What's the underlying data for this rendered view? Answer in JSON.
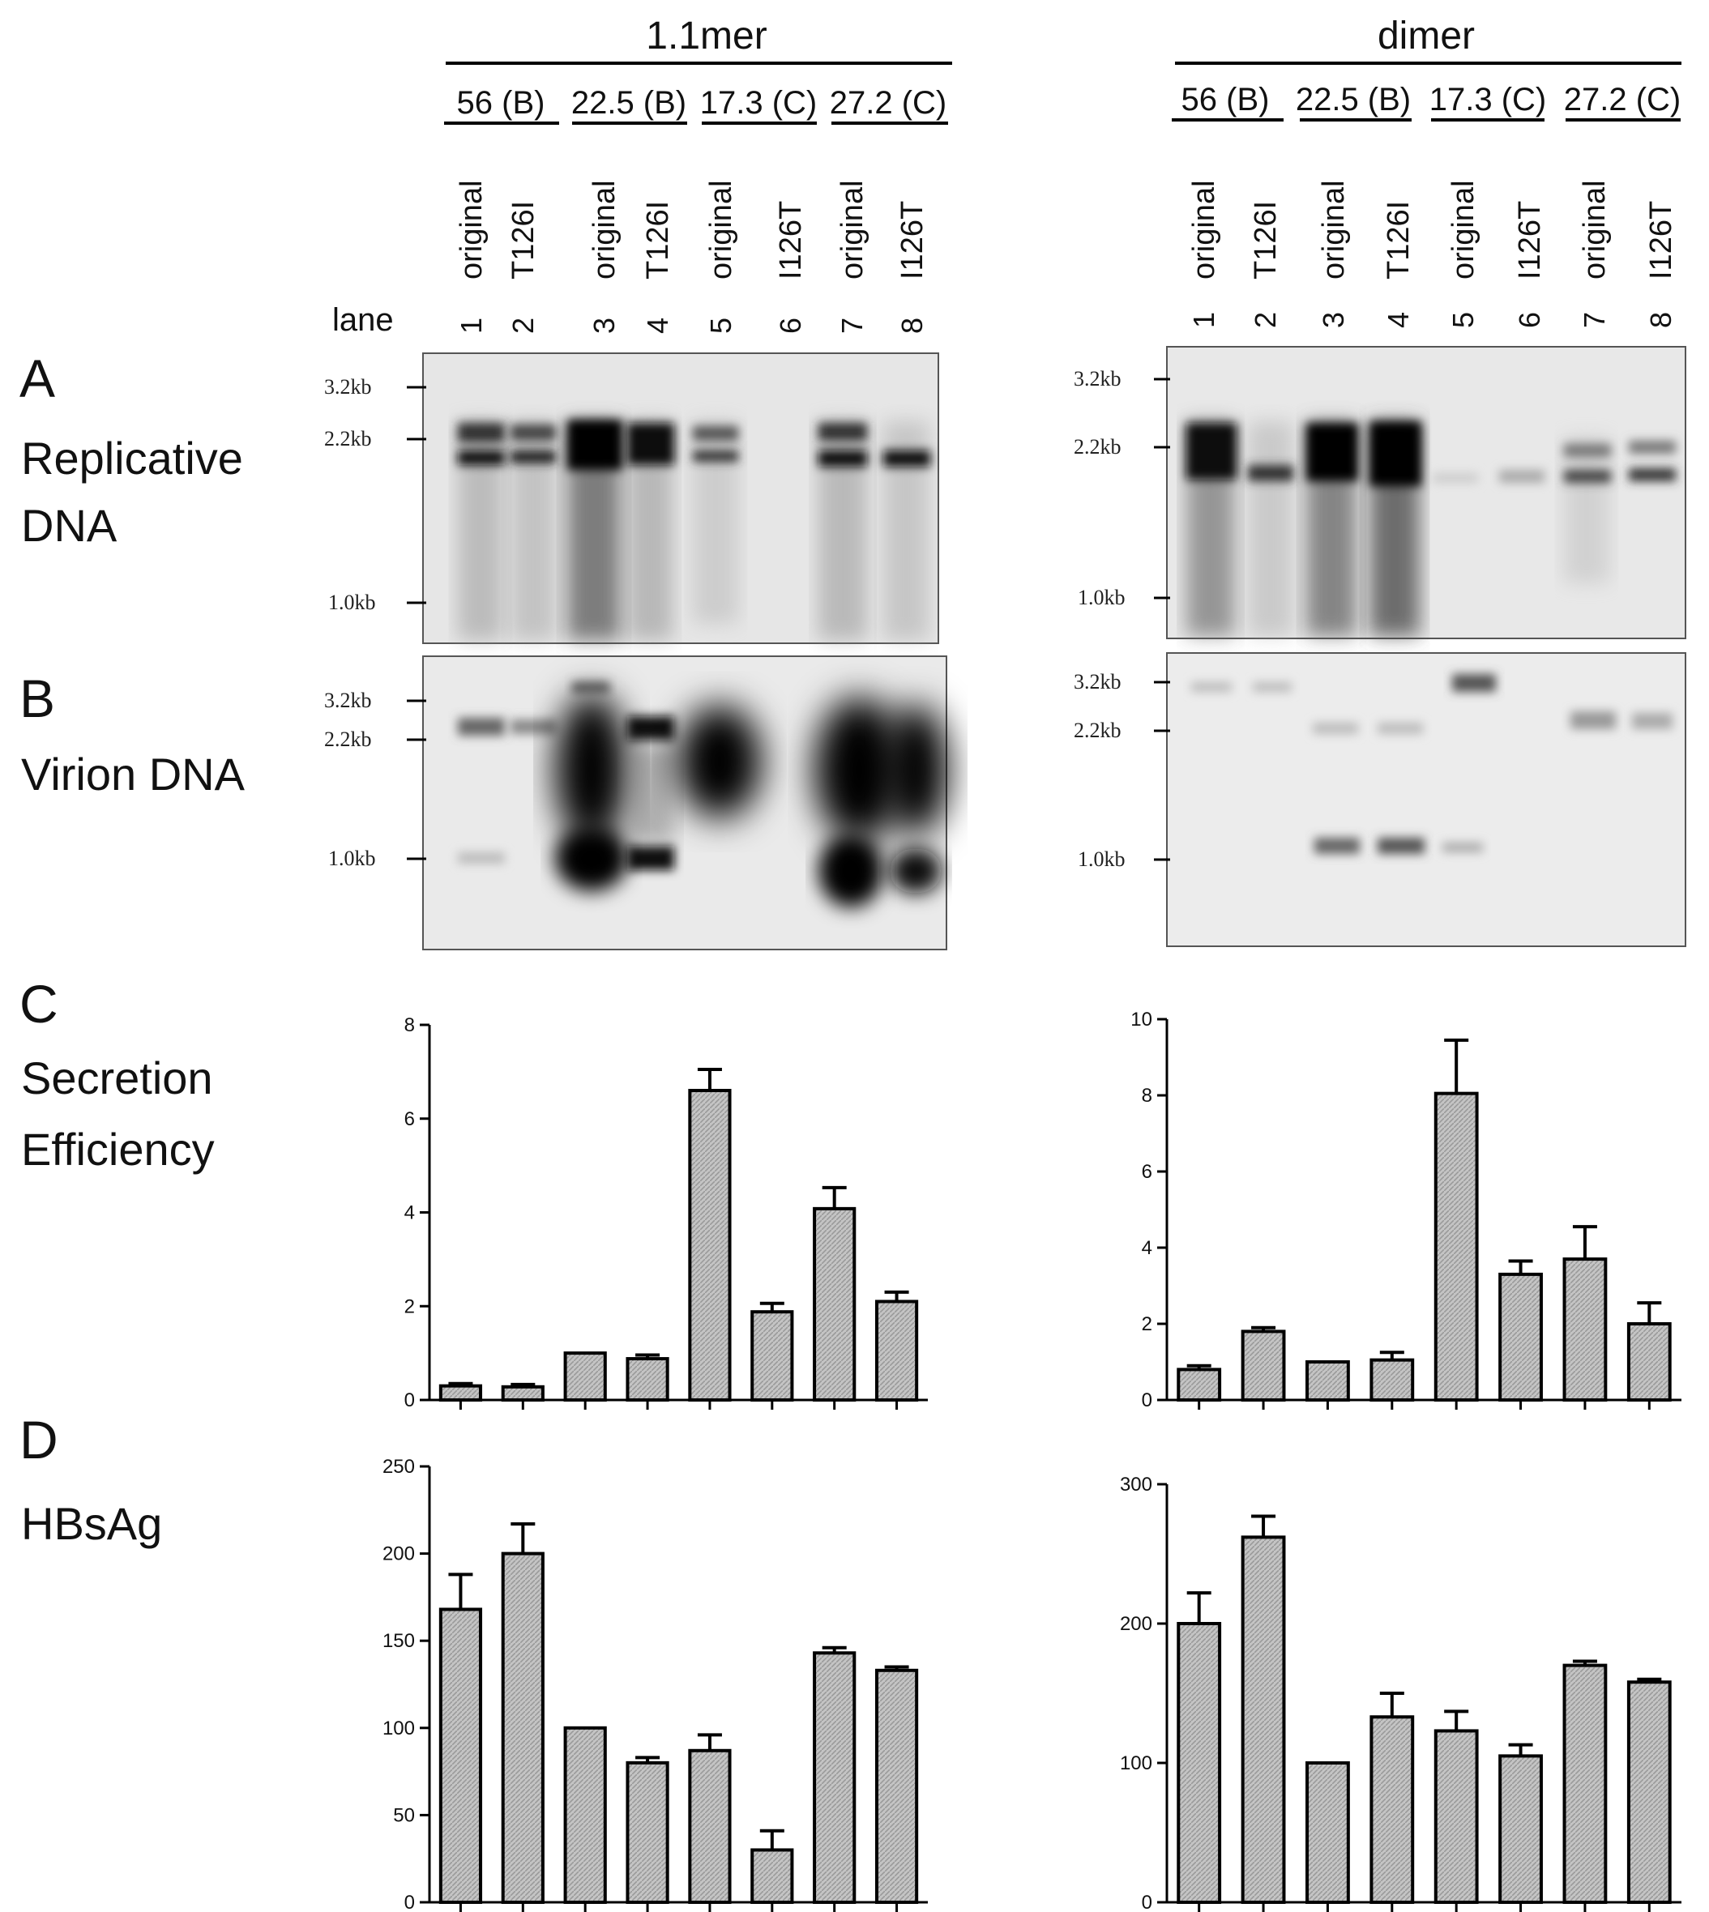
{
  "groups": [
    {
      "id": "1.1mer",
      "title": "1.1mer",
      "strains": [
        "56 (B)",
        "22.5 (B)",
        "17.3 (C)",
        "27.2 (C)"
      ],
      "variants": [
        "original",
        "T126I",
        "original",
        "T126I",
        "original",
        "I126T",
        "original",
        "I126T"
      ],
      "lanes": [
        "1",
        "2",
        "3",
        "4",
        "5",
        "6",
        "7",
        "8"
      ]
    },
    {
      "id": "dimer",
      "title": "dimer",
      "strains": [
        "56 (B)",
        "22.5 (B)",
        "17.3 (C)",
        "27.2 (C)"
      ],
      "variants": [
        "original",
        "T126I",
        "original",
        "T126I",
        "original",
        "I126T",
        "original",
        "I126T"
      ],
      "lanes": [
        "1",
        "2",
        "3",
        "4",
        "5",
        "6",
        "7",
        "8"
      ]
    }
  ],
  "lane_label": "lane",
  "panels": {
    "A": {
      "letter": "A",
      "label_lines": [
        "Replicative",
        "DNA"
      ],
      "markers": [
        "3.2kb",
        "2.2kb",
        "1.0kb"
      ]
    },
    "B": {
      "letter": "B",
      "label_lines": [
        "Virion DNA"
      ],
      "markers": [
        "3.2kb",
        "2.2kb",
        "1.0kb"
      ]
    },
    "C": {
      "letter": "C",
      "label_lines": [
        "Secretion",
        "Efficiency"
      ]
    },
    "D": {
      "letter": "D",
      "label_lines": [
        "HBsAg"
      ]
    }
  },
  "colors": {
    "bar_fill": "#bdbdbd",
    "bar_stroke": "#000000",
    "gel_bg": "#e9e9e9",
    "band": "#111111"
  },
  "chart_data": [
    {
      "id": "C-1.1mer",
      "type": "bar",
      "title": "",
      "xlabel": "",
      "ylabel": "",
      "categories": [
        "1",
        "2",
        "3",
        "4",
        "5",
        "6",
        "7",
        "8"
      ],
      "values": [
        0.3,
        0.28,
        1.0,
        0.88,
        6.6,
        1.88,
        4.08,
        2.1
      ],
      "errors": [
        0.05,
        0.05,
        0.0,
        0.08,
        0.45,
        0.18,
        0.45,
        0.2
      ],
      "ylim": [
        0,
        8
      ],
      "yticks": [
        0,
        2,
        4,
        6,
        8
      ],
      "grid": false
    },
    {
      "id": "C-dimer",
      "type": "bar",
      "title": "",
      "xlabel": "",
      "ylabel": "",
      "categories": [
        "1",
        "2",
        "3",
        "4",
        "5",
        "6",
        "7",
        "8"
      ],
      "values": [
        0.8,
        1.8,
        1.0,
        1.05,
        8.05,
        3.3,
        3.7,
        2.0
      ],
      "errors": [
        0.1,
        0.1,
        0.0,
        0.2,
        1.4,
        0.35,
        0.85,
        0.55
      ],
      "ylim": [
        0,
        10
      ],
      "yticks": [
        0,
        2,
        4,
        6,
        8,
        10
      ],
      "grid": false
    },
    {
      "id": "D-1.1mer",
      "type": "bar",
      "title": "",
      "xlabel": "",
      "ylabel": "",
      "categories": [
        "1",
        "2",
        "3",
        "4",
        "5",
        "6",
        "7",
        "8"
      ],
      "values": [
        168,
        200,
        100,
        80,
        87,
        30,
        143,
        133
      ],
      "errors": [
        20,
        17,
        0,
        3,
        9,
        11,
        3,
        2
      ],
      "ylim": [
        0,
        250
      ],
      "yticks": [
        0,
        50,
        100,
        150,
        200,
        250
      ],
      "grid": false
    },
    {
      "id": "D-dimer",
      "type": "bar",
      "title": "",
      "xlabel": "",
      "ylabel": "",
      "categories": [
        "1",
        "2",
        "3",
        "4",
        "5",
        "6",
        "7",
        "8"
      ],
      "values": [
        200,
        262,
        100,
        133,
        123,
        105,
        170,
        158
      ],
      "errors": [
        22,
        15,
        0,
        17,
        14,
        8,
        3,
        2
      ],
      "ylim": [
        0,
        300
      ],
      "yticks": [
        0,
        100,
        200,
        300
      ],
      "grid": false
    }
  ]
}
